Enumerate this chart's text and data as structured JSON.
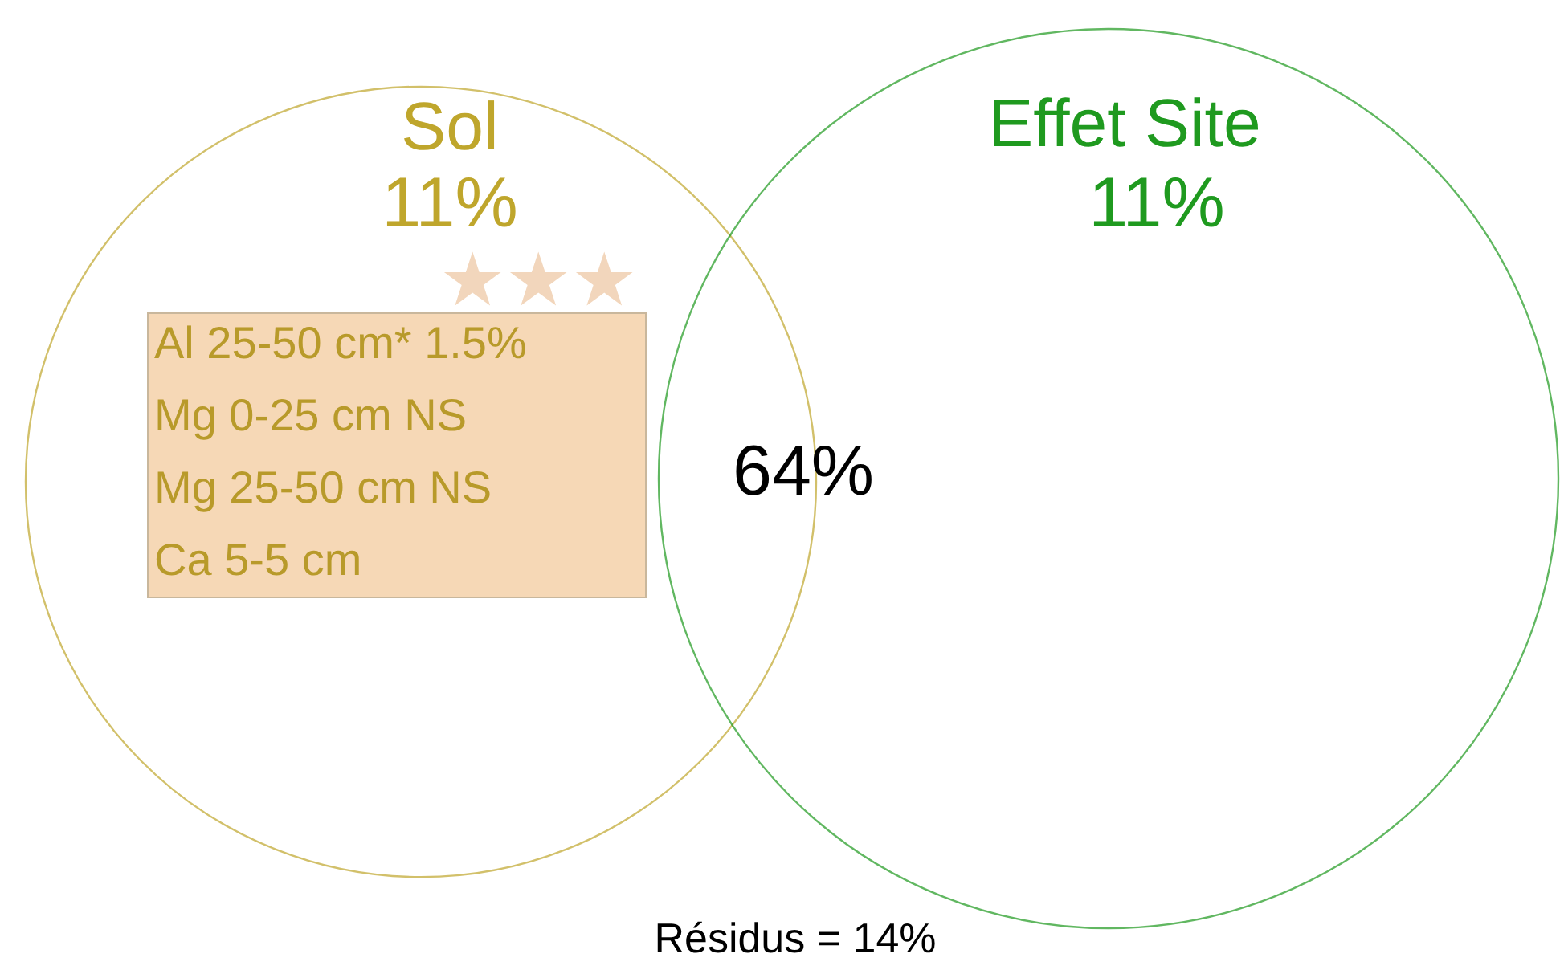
{
  "chart_data": {
    "type": "other",
    "categories": [
      "Sol",
      "Effet Site",
      null
    ],
    "values": [
      11,
      11,
      64
    ],
    "value_labels": [
      "11%",
      "11%",
      "64%"
    ],
    "colors": [
      "#bfa62c",
      "#1f9a1f",
      "#000000"
    ],
    "annotations": [
      "Al 25-50 cm* 1.5%",
      "Mg 0-25 cm NS",
      "Mg 25-50 cm NS",
      "Ca 5-5 cm",
      "★★★",
      "Résidus = 14%"
    ]
  }
}
